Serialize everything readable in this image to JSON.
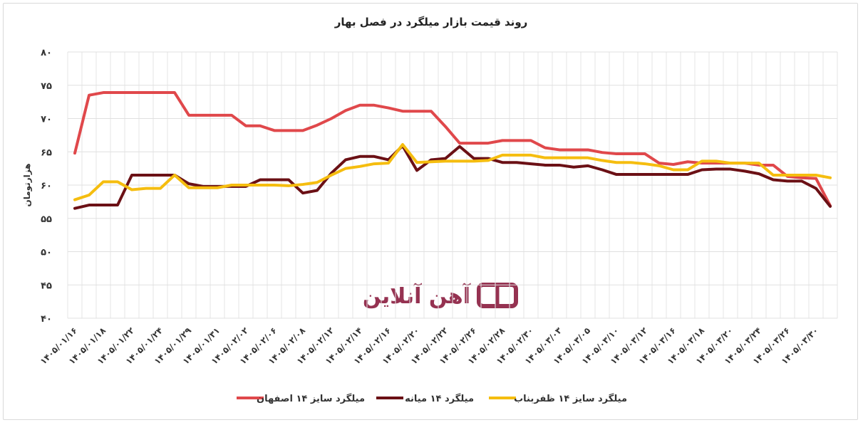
{
  "chart_data": {
    "type": "line",
    "title": "روند قیمت بازار میلگرد در فصل بهار",
    "y_label": "هزارتومان",
    "watermark": "آهن آنلاین",
    "categories": [
      "۱۴۰۵/۰۱/۱۶",
      null,
      "۱۴۰۵/۰۱/۱۸",
      null,
      "۱۴۰۵/۰۱/۲۲",
      null,
      "۱۴۰۵/۰۱/۲۴",
      null,
      "۱۴۰۵/۰۱/۲۹",
      null,
      "۱۴۰۵/۰۱/۳۱",
      null,
      "۱۴۰۵/۰۲/۰۲",
      null,
      "۱۴۰۵/۰۲/۰۶",
      null,
      "۱۴۰۵/۰۲/۰۸",
      null,
      "۱۴۰۵/۰۲/۱۲",
      null,
      "۱۴۰۵/۰۲/۱۴",
      null,
      "۱۴۰۵/۰۲/۱۶",
      null,
      "۱۴۰۵/۰۲/۲۰",
      null,
      "۱۴۰۵/۰۲/۲۲",
      null,
      "۱۴۰۵/۰۲/۲۶",
      null,
      "۱۴۰۵/۰۲/۲۸",
      null,
      "۱۴۰۵/۰۲/۳۰",
      null,
      "۱۴۰۵/۰۳/۰۳",
      null,
      "۱۴۰۵/۰۳/۰۵",
      null,
      "۱۴۰۵/۰۳/۱۰",
      null,
      "۱۴۰۵/۰۳/۱۲",
      null,
      "۱۴۰۵/۰۳/۱۶",
      null,
      "۱۴۰۵/۰۳/۱۸",
      null,
      "۱۴۰۵/۰۳/۲۰",
      null,
      "۱۴۰۵/۰۳/۲۴",
      null,
      "۱۴۰۵/۰۳/۲۶",
      null,
      "۱۴۰۵/۰۳/۳۰",
      null
    ],
    "series": [
      {
        "name": "میلگرد سایز ۱۴ اصفهان",
        "color": "#e0484b",
        "values": [
          64.8,
          73.5,
          73.9,
          73.9,
          73.9,
          73.9,
          73.9,
          73.9,
          70.5,
          70.5,
          70.5,
          70.5,
          68.9,
          68.9,
          68.2,
          68.2,
          68.2,
          69,
          70,
          71.2,
          72,
          72,
          71.6,
          71.1,
          71.1,
          71.1,
          68.8,
          66.3,
          66.3,
          66.3,
          66.7,
          66.7,
          66.7,
          65.6,
          65.3,
          65.3,
          65.3,
          64.9,
          64.7,
          64.7,
          64.7,
          63.3,
          63.1,
          63.5,
          63.3,
          63.3,
          63.3,
          63.3,
          63,
          63,
          61.3,
          61.1,
          61,
          56.9
        ]
      },
      {
        "name": "میلگرد ۱۴ میانه",
        "color": "#6b1015",
        "values": [
          56.5,
          57,
          57,
          57,
          61.5,
          61.5,
          61.5,
          61.5,
          60.2,
          59.8,
          59.8,
          59.8,
          59.8,
          60.8,
          60.8,
          60.8,
          58.8,
          59.2,
          61.8,
          63.8,
          64.3,
          64.3,
          63.8,
          65.9,
          62.2,
          63.8,
          64,
          65.8,
          64,
          64,
          63.4,
          63.4,
          63.2,
          63,
          63,
          62.7,
          62.9,
          62.3,
          61.6,
          61.6,
          61.6,
          61.6,
          61.6,
          61.6,
          62.3,
          62.4,
          62.4,
          62.1,
          61.7,
          60.8,
          60.6,
          60.6,
          59.5,
          56.8
        ]
      },
      {
        "name": "میلگرد سایز ۱۴ ظفربناب",
        "color": "#f5bd0f",
        "values": [
          57.8,
          58.5,
          60.5,
          60.5,
          59.3,
          59.5,
          59.5,
          61.5,
          59.6,
          59.6,
          59.6,
          60,
          60,
          60,
          60,
          59.9,
          60.1,
          60.4,
          61.5,
          62.5,
          62.8,
          63.2,
          63.3,
          66.1,
          63.4,
          63.5,
          63.6,
          63.6,
          63.6,
          63.7,
          64.5,
          64.5,
          64.5,
          64.1,
          64.1,
          64.1,
          64.1,
          63.7,
          63.4,
          63.4,
          63.2,
          62.9,
          62.3,
          62.3,
          63.6,
          63.6,
          63.3,
          63.3,
          63.3,
          61.5,
          61.5,
          61.5,
          61.5,
          61.1
        ]
      }
    ],
    "ylim": [
      40,
      80
    ],
    "yticks": [
      {
        "value": 40,
        "label": "۴۰"
      },
      {
        "value": 45,
        "label": "۴۵"
      },
      {
        "value": 50,
        "label": "۵۰"
      },
      {
        "value": 55,
        "label": "۵۵"
      },
      {
        "value": 60,
        "label": "۶۰"
      },
      {
        "value": 65,
        "label": "۶۵"
      },
      {
        "value": 70,
        "label": "۷۰"
      },
      {
        "value": 75,
        "label": "۷۵"
      },
      {
        "value": 80,
        "label": "۸۰"
      }
    ],
    "grid": true
  }
}
